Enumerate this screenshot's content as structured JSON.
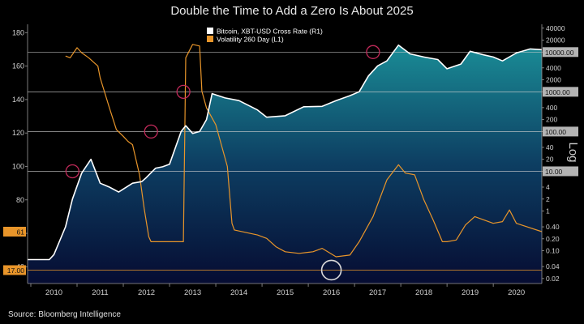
{
  "chart_data": {
    "type": "line",
    "title": "Double the Time to Add a Zero Is About 2025",
    "source": "Source: Bloomberg Intelligence",
    "right_axis_title": "Log",
    "legend_placement": "top-center",
    "grid": false,
    "x_ticks": [
      "2010",
      "2011",
      "2012",
      "2013",
      "2014",
      "2015",
      "2016",
      "2017",
      "2018",
      "2019",
      "2020"
    ],
    "left_axis": {
      "range": [
        30,
        185
      ],
      "ticks": [
        40,
        60,
        80,
        100,
        120,
        140,
        160,
        180
      ]
    },
    "right_axis": {
      "scale": "log",
      "range": [
        0.015,
        50000
      ],
      "ticks": [
        "40000",
        "20000",
        "10000",
        "4000",
        "2000",
        "1000",
        "400",
        "200",
        "100",
        "40",
        "20",
        "10",
        "4",
        "2",
        "1",
        "0.40",
        "0.20",
        "0.10",
        "0.04",
        "0.02"
      ]
    },
    "reference_lines": [
      {
        "axis": "right",
        "value": 10000,
        "label": "10000.00"
      },
      {
        "axis": "right",
        "value": 1000,
        "label": "1000.00"
      },
      {
        "axis": "right",
        "value": 100,
        "label": "100.00"
      },
      {
        "axis": "right",
        "value": 10,
        "label": "10.00"
      }
    ],
    "left_markers": [
      {
        "value": 61,
        "label": "61"
      },
      {
        "value": 38,
        "label": "17.00"
      }
    ],
    "annotations": [
      {
        "type": "circle",
        "x": 2010.9,
        "axis": "right",
        "value": 10
      },
      {
        "type": "circle",
        "x": 2012.6,
        "axis": "right",
        "value": 100
      },
      {
        "type": "circle",
        "x": 2013.3,
        "axis": "right",
        "value": 1000
      },
      {
        "type": "circle",
        "x": 2017.4,
        "axis": "right",
        "value": 10000
      },
      {
        "type": "circle",
        "x": 2016.5,
        "axis": "left",
        "value": 38,
        "color": "#d8d8d8"
      }
    ],
    "series": [
      {
        "name": "Bitcoin, XBT-USD Cross Rate  (R1)",
        "axis": "right",
        "color": "#ffffff",
        "x": [
          2009.93,
          2010.4,
          2010.5,
          2010.75,
          2010.9,
          2011.1,
          2011.3,
          2011.5,
          2011.7,
          2011.9,
          2012.2,
          2012.4,
          2012.5,
          2012.7,
          2012.85,
          2013.0,
          2013.25,
          2013.35,
          2013.5,
          2013.65,
          2013.8,
          2013.92,
          2014.2,
          2014.5,
          2014.9,
          2015.1,
          2015.5,
          2015.9,
          2016.3,
          2016.6,
          2016.9,
          2017.1,
          2017.3,
          2017.5,
          2017.7,
          2017.95,
          2018.2,
          2018.5,
          2018.8,
          2019.0,
          2019.3,
          2019.5,
          2019.8,
          2020.0,
          2020.2,
          2020.5,
          2020.8,
          2021.05
        ],
        "values": [
          0.06,
          0.06,
          0.08,
          0.4,
          2,
          9,
          20,
          5,
          4,
          3,
          5,
          5.5,
          7,
          12,
          13,
          15,
          100,
          140,
          90,
          100,
          200,
          900,
          700,
          600,
          350,
          230,
          250,
          420,
          430,
          600,
          800,
          1000,
          2500,
          4500,
          6000,
          15000,
          9000,
          7500,
          6500,
          3800,
          5000,
          10500,
          8500,
          7500,
          6000,
          9500,
          12000,
          11500
        ]
      },
      {
        "name": "Volatility 260 Day  (L1)",
        "axis": "left",
        "color": "#e8952a",
        "x": [
          2010.75,
          2010.85,
          2011.0,
          2011.1,
          2011.25,
          2011.45,
          2011.5,
          2011.7,
          2011.85,
          2012.0,
          2012.1,
          2012.2,
          2012.35,
          2012.45,
          2012.55,
          2012.6,
          2012.65,
          2013.3,
          2013.35,
          2013.5,
          2013.65,
          2013.7,
          2013.8,
          2014.0,
          2014.25,
          2014.35,
          2014.4,
          2014.9,
          2015.1,
          2015.3,
          2015.5,
          2015.8,
          2016.1,
          2016.3,
          2016.6,
          2016.9,
          2017.1,
          2017.4,
          2017.7,
          2017.95,
          2018.1,
          2018.3,
          2018.5,
          2018.7,
          2018.9,
          2019.0,
          2019.2,
          2019.4,
          2019.6,
          2020.0,
          2020.2,
          2020.35,
          2020.5,
          2021.05
        ],
        "values": [
          166,
          165,
          171,
          168,
          165,
          160,
          153,
          135,
          122,
          118,
          115,
          113,
          95,
          75,
          58,
          55,
          55,
          55,
          165,
          173,
          172,
          145,
          135,
          125,
          100,
          66,
          62,
          59,
          57,
          52,
          49,
          48,
          49,
          51,
          46,
          47,
          55,
          70,
          92,
          101,
          96,
          95,
          80,
          68,
          55,
          55,
          56,
          65,
          70,
          66,
          67,
          74,
          66,
          61
        ]
      }
    ]
  }
}
